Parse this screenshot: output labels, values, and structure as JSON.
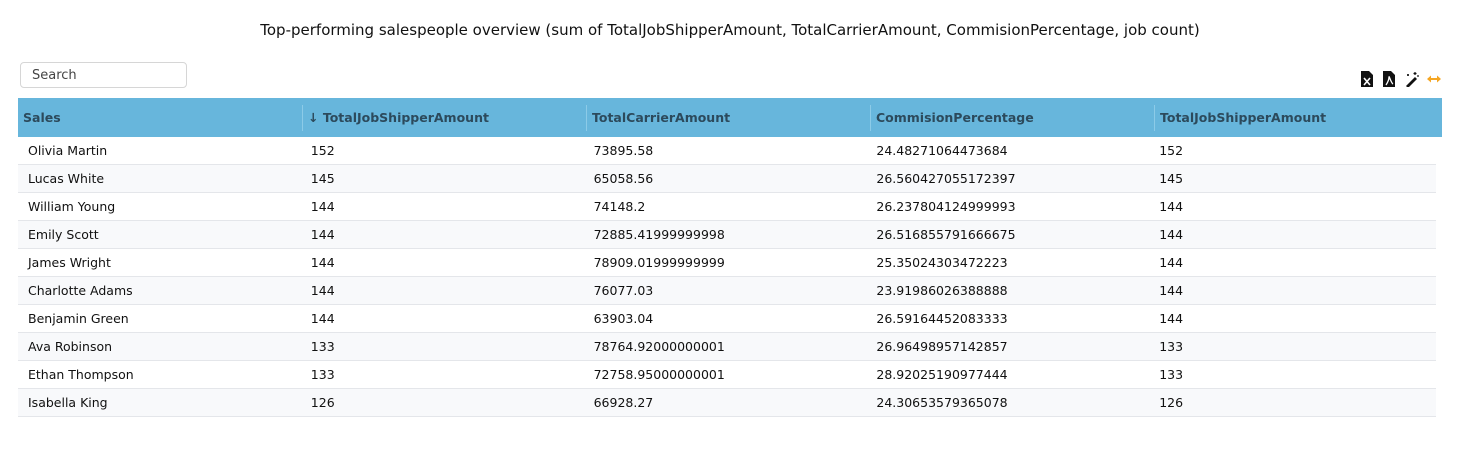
{
  "title": "Top-performing salespeople overview (sum of TotalJobShipperAmount, TotalCarrierAmount, CommisionPercentage, job count)",
  "search": {
    "placeholder": "Search",
    "value": ""
  },
  "toolbar": {
    "icons": [
      "excel-export-icon",
      "pdf-export-icon",
      "magic-wand-icon",
      "expand-width-icon"
    ],
    "accent": "#f5a623"
  },
  "colors": {
    "header_bg": "#67b6dc",
    "header_text": "#2c4a5c"
  },
  "table": {
    "columns": [
      "Sales",
      "↓ TotalJobShipperAmount",
      "TotalCarrierAmount",
      "CommisionPercentage",
      "TotalJobShipperAmount"
    ],
    "sort": {
      "column": "TotalJobShipperAmount",
      "direction": "descending"
    },
    "rows": [
      [
        "Olivia Martin",
        "152",
        "73895.58",
        "24.48271064473684",
        "152"
      ],
      [
        "Lucas White",
        "145",
        "65058.56",
        "26.560427055172397",
        "145"
      ],
      [
        "William Young",
        "144",
        "74148.2",
        "26.237804124999993",
        "144"
      ],
      [
        "Emily Scott",
        "144",
        "72885.41999999998",
        "26.516855791666675",
        "144"
      ],
      [
        "James Wright",
        "144",
        "78909.01999999999",
        "25.35024303472223",
        "144"
      ],
      [
        "Charlotte Adams",
        "144",
        "76077.03",
        "23.91986026388888",
        "144"
      ],
      [
        "Benjamin Green",
        "144",
        "63903.04",
        "26.59164452083333",
        "144"
      ],
      [
        "Ava Robinson",
        "133",
        "78764.92000000001",
        "26.96498957142857",
        "133"
      ],
      [
        "Ethan Thompson",
        "133",
        "72758.95000000001",
        "28.92025190977444",
        "133"
      ],
      [
        "Isabella King",
        "126",
        "66928.27",
        "24.30653579365078",
        "126"
      ]
    ]
  }
}
